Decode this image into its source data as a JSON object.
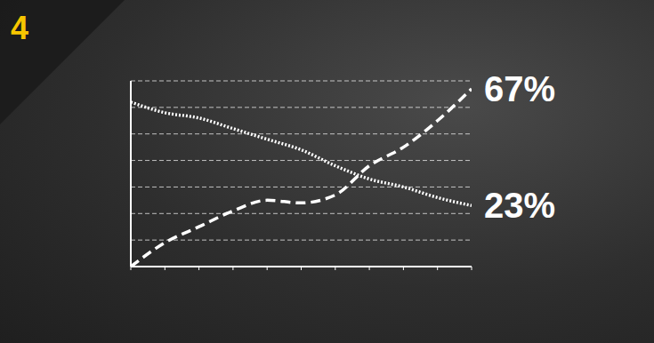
{
  "chart_data": {
    "type": "line",
    "title": "4",
    "x": [
      0,
      1,
      2,
      3,
      4,
      5,
      6,
      7,
      8,
      9,
      10
    ],
    "xlim": [
      0,
      10
    ],
    "xticks": [
      0,
      1,
      2,
      3,
      4,
      5,
      6,
      7,
      8,
      9,
      10
    ],
    "ylim": [
      0,
      70
    ],
    "yticks": [
      0,
      10,
      20,
      30,
      40,
      50,
      60,
      70
    ],
    "grid": true,
    "tick_labels": false,
    "data_labels": true,
    "series": [
      {
        "color": "#ffffff",
        "line_style": "dotted",
        "marker": "none",
        "values": [
          62,
          58,
          56,
          52,
          48,
          44,
          38,
          33,
          30,
          26,
          23
        ],
        "value_labels": [
          null,
          null,
          null,
          null,
          null,
          null,
          null,
          null,
          null,
          null,
          "23%"
        ]
      },
      {
        "color": "#ffffff",
        "line_style": "dashed",
        "marker": "none",
        "values": [
          0,
          9,
          15,
          21,
          25,
          24,
          27,
          38,
          45,
          55,
          67
        ],
        "value_labels": [
          null,
          null,
          null,
          null,
          null,
          null,
          null,
          null,
          null,
          null,
          "67%"
        ]
      }
    ]
  }
}
